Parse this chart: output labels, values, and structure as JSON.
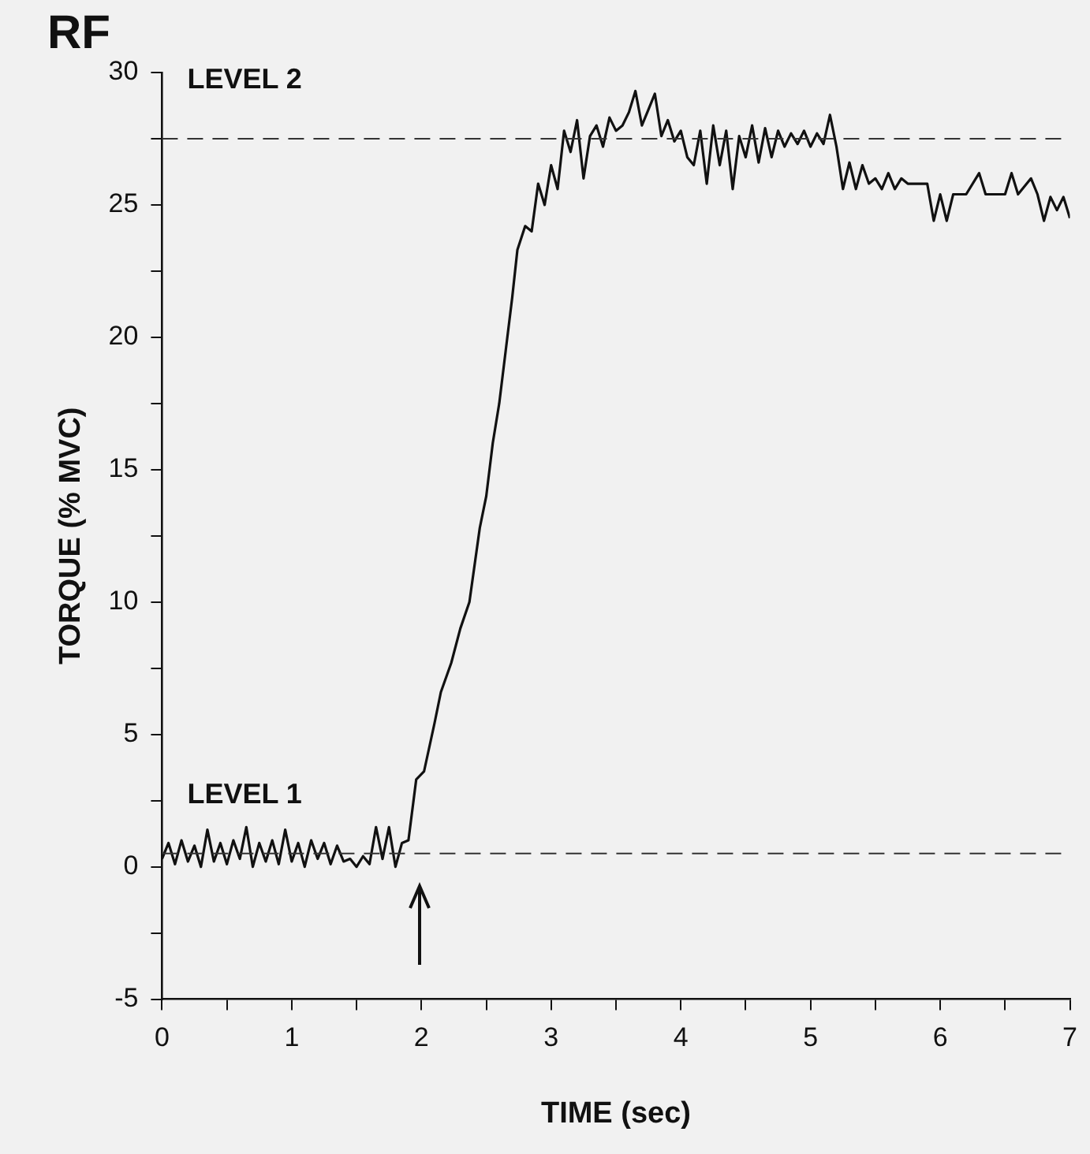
{
  "chart_data": {
    "type": "line",
    "title": "RF",
    "xlabel": "TIME (sec)",
    "ylabel": "TORQUE (% MVC)",
    "xlim": [
      0,
      7
    ],
    "xticks": [
      0,
      {
        "value": 0.5,
        "label": null
      },
      1,
      {
        "value": 1.5,
        "label": null
      },
      2,
      {
        "value": 2.5,
        "label": null
      },
      3,
      {
        "value": 3.5,
        "label": null
      },
      4,
      {
        "value": 4.5,
        "label": null
      },
      5,
      {
        "value": 5.5,
        "label": null
      },
      6,
      {
        "value": 6.5,
        "label": null
      },
      7
    ],
    "ylim": [
      -5,
      30
    ],
    "yticks": [
      -5,
      {
        "value": -2.5,
        "label": null
      },
      0,
      {
        "value": 2.5,
        "label": null
      },
      5,
      {
        "value": 7.5,
        "label": null
      },
      10,
      {
        "value": 12.5,
        "label": null
      },
      15,
      {
        "value": 17.5,
        "label": null
      },
      20,
      {
        "value": 22.5,
        "label": null
      },
      25,
      {
        "value": 27.5,
        "label": null
      },
      30
    ],
    "grid": false,
    "legend": false,
    "marker": "none",
    "line_style": "solid",
    "ref_lines": [
      {
        "axis": "y",
        "value": 0.5,
        "label": "LEVEL 1",
        "line_style": "dashed",
        "color": "#333333"
      },
      {
        "axis": "y",
        "value": 27.5,
        "label": "LEVEL 2",
        "line_style": "dashed",
        "color": "#333333"
      }
    ],
    "series": [
      {
        "color": "#111111",
        "x": [
          0,
          0.05,
          0.1,
          0.15,
          0.2,
          0.25,
          0.3,
          0.35,
          0.4,
          0.45,
          0.5,
          0.55,
          0.6,
          0.65,
          0.7,
          0.75,
          0.8,
          0.85,
          0.9,
          0.95,
          1,
          1.05,
          1.1,
          1.15,
          1.2,
          1.25,
          1.3,
          1.35,
          1.4,
          1.45,
          1.5,
          1.55,
          1.6,
          1.65,
          1.7,
          1.75,
          1.8,
          1.85,
          1.9,
          1.96,
          2.02,
          2.1,
          2.15,
          2.23,
          2.3,
          2.37,
          2.45,
          2.5,
          2.55,
          2.6,
          2.65,
          2.7,
          2.74,
          2.8,
          2.85,
          2.9,
          2.95,
          3,
          3.05,
          3.1,
          3.15,
          3.2,
          3.25,
          3.3,
          3.35,
          3.4,
          3.45,
          3.5,
          3.55,
          3.6,
          3.65,
          3.7,
          3.75,
          3.8,
          3.85,
          3.9,
          3.95,
          4,
          4.05,
          4.1,
          4.15,
          4.2,
          4.25,
          4.3,
          4.35,
          4.4,
          4.45,
          4.5,
          4.55,
          4.6,
          4.65,
          4.7,
          4.75,
          4.8,
          4.85,
          4.9,
          4.95,
          5,
          5.05,
          5.1,
          5.15,
          5.2,
          5.25,
          5.3,
          5.35,
          5.4,
          5.45,
          5.5,
          5.55,
          5.6,
          5.65,
          5.7,
          5.75,
          5.8,
          5.85,
          5.9,
          5.95,
          6,
          6.05,
          6.1,
          6.2,
          6.3,
          6.35,
          6.5,
          6.55,
          6.6,
          6.7,
          6.75,
          6.8,
          6.85,
          6.9,
          6.95,
          7
        ],
        "values": [
          0.3,
          0.9,
          0.1,
          1,
          0.2,
          0.8,
          0,
          1.4,
          0.2,
          0.9,
          0.1,
          1,
          0.3,
          1.5,
          0,
          0.9,
          0.2,
          1,
          0.1,
          1.4,
          0.2,
          0.9,
          0,
          1,
          0.3,
          0.9,
          0.1,
          0.8,
          0.2,
          0.3,
          0,
          0.4,
          0.1,
          1.5,
          0.3,
          1.5,
          0,
          0.9,
          1,
          3.3,
          3.6,
          5.4,
          6.6,
          7.7,
          9,
          10,
          12.8,
          14,
          16,
          17.5,
          19.5,
          21.5,
          23.3,
          24.2,
          24,
          25.8,
          25,
          26.5,
          25.6,
          27.8,
          27,
          28.2,
          26,
          27.6,
          28,
          27.2,
          28.3,
          27.8,
          28,
          28.5,
          29.3,
          28,
          28.6,
          29.2,
          27.6,
          28.2,
          27.4,
          27.8,
          26.8,
          26.5,
          27.8,
          25.8,
          28,
          26.5,
          27.8,
          25.6,
          27.6,
          26.8,
          28,
          26.6,
          27.9,
          26.8,
          27.8,
          27.2,
          27.7,
          27.3,
          27.8,
          27.2,
          27.7,
          27.3,
          28.4,
          27.2,
          25.6,
          26.6,
          25.6,
          26.5,
          25.8,
          26,
          25.6,
          26.2,
          25.6,
          26,
          25.8,
          25.8,
          25.8,
          25.8,
          24.4,
          25.4,
          24.4,
          25.4,
          25.4,
          26.2,
          25.4,
          25.4,
          26.2,
          25.4,
          26,
          25.4,
          24.4,
          25.3,
          24.8,
          25.3,
          24.5
        ]
      }
    ]
  }
}
